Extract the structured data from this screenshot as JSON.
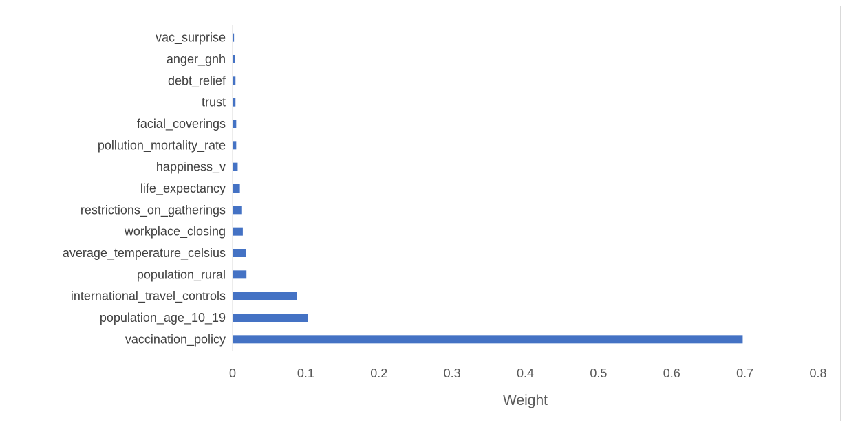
{
  "chart_data": {
    "type": "bar",
    "orientation": "horizontal",
    "title": "",
    "xlabel": "Weight",
    "ylabel": "",
    "xlim": [
      0,
      0.8
    ],
    "xticks": [
      "0",
      "0.1",
      "0.2",
      "0.3",
      "0.4",
      "0.5",
      "0.6",
      "0.7",
      "0.8"
    ],
    "grid": false,
    "legend": "none",
    "bar_color": "#4472C4",
    "categories": [
      "vac_surprise",
      "anger_gnh",
      "debt_relief",
      "trust",
      "facial_coverings",
      "pollution_mortality_rate",
      "happiness_v",
      "life_expectancy",
      "restrictions_on_gatherings",
      "workplace_closing",
      "average_temperature_celsius",
      "population_rural",
      "international_travel_controls",
      "population_age_10_19",
      "vaccination_policy"
    ],
    "values": [
      0.002,
      0.003,
      0.004,
      0.004,
      0.005,
      0.005,
      0.007,
      0.01,
      0.012,
      0.014,
      0.018,
      0.019,
      0.088,
      0.103,
      0.697
    ]
  }
}
